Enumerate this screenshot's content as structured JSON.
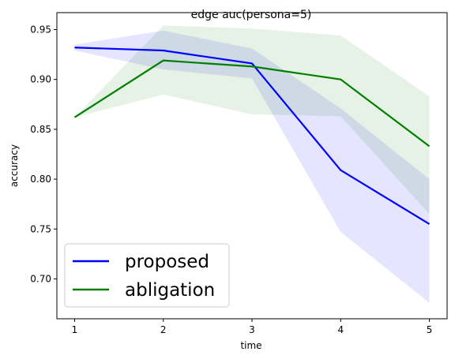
{
  "chart_data": {
    "type": "line",
    "title": "edge auc(persona=5)",
    "xlabel": "time",
    "ylabel": "accuracy",
    "x": [
      1,
      2,
      3,
      4,
      5
    ],
    "xlim": [
      0.8,
      5.2
    ],
    "ylim": [
      0.66,
      0.967
    ],
    "xticks": [
      "1",
      "2",
      "3",
      "4",
      "5"
    ],
    "yticks": [
      "0.70",
      "0.75",
      "0.80",
      "0.85",
      "0.90",
      "0.95"
    ],
    "grid": false,
    "legend_position": "lower-left",
    "series": [
      {
        "name": "proposed",
        "color": "#0000ff",
        "values": [
          0.932,
          0.929,
          0.916,
          0.809,
          0.755
        ],
        "lower": [
          0.929,
          0.91,
          0.901,
          0.747,
          0.676
        ],
        "upper": [
          0.935,
          0.949,
          0.931,
          0.871,
          0.8
        ],
        "band_color": "#0000ff",
        "band_opacity": 0.1
      },
      {
        "name": "abligation",
        "color": "#008000",
        "values": [
          0.862,
          0.919,
          0.913,
          0.9,
          0.833
        ],
        "lower": [
          0.862,
          0.885,
          0.865,
          0.863,
          0.765
        ],
        "upper": [
          0.862,
          0.954,
          0.951,
          0.944,
          0.883
        ],
        "band_color": "#008000",
        "band_opacity": 0.1
      }
    ]
  }
}
